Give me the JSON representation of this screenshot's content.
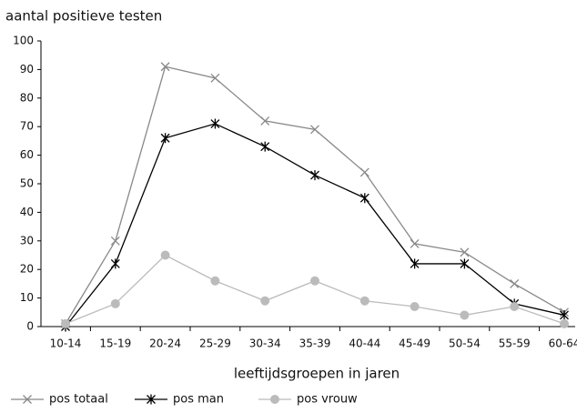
{
  "chart_data": {
    "type": "line",
    "title": "aantal positieve testen",
    "x_label": "leeftijdsgroepen in jaren",
    "categories": [
      "10-14",
      "15-19",
      "20-24",
      "25-29",
      "30-34",
      "35-39",
      "40-44",
      "45-49",
      "50-54",
      "55-59",
      "60-64"
    ],
    "series": [
      {
        "name": "pos totaal",
        "color": "#888888",
        "marker": "x",
        "values": [
          1,
          30,
          91,
          87,
          72,
          69,
          54,
          29,
          26,
          15,
          5
        ]
      },
      {
        "name": "pos man",
        "color": "#000000",
        "marker": "star",
        "values": [
          0,
          22,
          66,
          71,
          63,
          53,
          45,
          22,
          22,
          8,
          4
        ]
      },
      {
        "name": "pos vrouw",
        "color": "#bbbbbb",
        "marker": "circle",
        "values": [
          1,
          8,
          25,
          16,
          9,
          16,
          9,
          7,
          4,
          7,
          1
        ]
      }
    ],
    "ylim": [
      0,
      100
    ],
    "yticks": [
      0,
      10,
      20,
      30,
      40,
      50,
      60,
      70,
      80,
      90,
      100
    ],
    "grid": false
  }
}
